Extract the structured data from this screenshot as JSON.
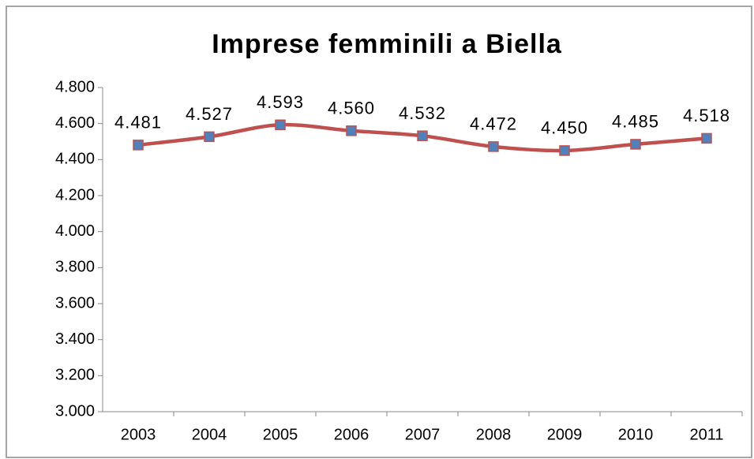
{
  "chart_data": {
    "type": "line",
    "title": "Imprese femminili a Biella",
    "categories": [
      "2003",
      "2004",
      "2005",
      "2006",
      "2007",
      "2008",
      "2009",
      "2010",
      "2011"
    ],
    "series": [
      {
        "name": "Imprese femminili",
        "color": "#c0504d",
        "marker_color": "#4f81bd",
        "values": [
          4481,
          4527,
          4593,
          4560,
          4532,
          4472,
          4450,
          4485,
          4518
        ],
        "value_labels": [
          "4.481",
          "4.527",
          "4.593",
          "4.560",
          "4.532",
          "4.472",
          "4.450",
          "4.485",
          "4.518"
        ]
      }
    ],
    "ylim": [
      3000,
      4800
    ],
    "yticks": [
      {
        "value": 3000,
        "label": "3.000"
      },
      {
        "value": 3200,
        "label": "3.200"
      },
      {
        "value": 3400,
        "label": "3.400"
      },
      {
        "value": 3600,
        "label": "3.600"
      },
      {
        "value": 3800,
        "label": "3.800"
      },
      {
        "value": 4000,
        "label": "4.000"
      },
      {
        "value": 4200,
        "label": "4.200"
      },
      {
        "value": 4400,
        "label": "4.400"
      },
      {
        "value": 4600,
        "label": "4.600"
      },
      {
        "value": 4800,
        "label": "4.800"
      }
    ],
    "grid": false
  }
}
